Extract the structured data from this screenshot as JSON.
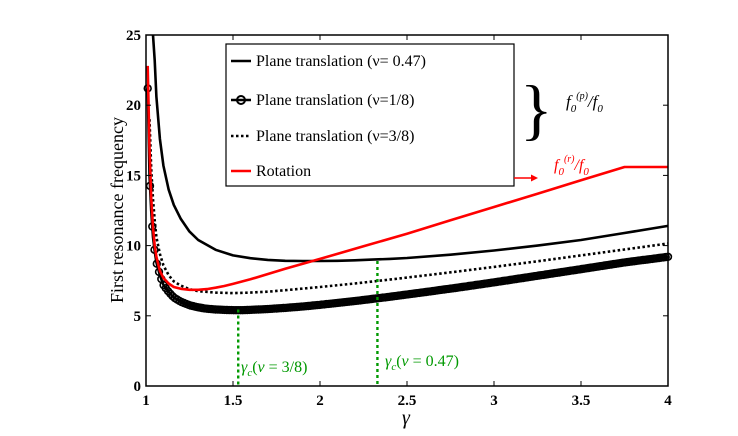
{
  "chart_data": {
    "type": "line",
    "xlabel": "γ",
    "ylabel": "First resonance frequency",
    "xlim": [
      1,
      4
    ],
    "ylim": [
      0,
      25
    ],
    "xticks": [
      "1",
      "1.5",
      "2",
      "2.5",
      "3",
      "3.5",
      "4"
    ],
    "yticks": [
      "0",
      "5",
      "10",
      "15",
      "20",
      "25"
    ],
    "grid": false,
    "legend_position": "top-center",
    "series": [
      {
        "name": "Plane translation (ν= 0.47)",
        "style": "solid",
        "color": "#000000",
        "x": [
          1.04,
          1.05,
          1.06,
          1.08,
          1.1,
          1.13,
          1.16,
          1.2,
          1.25,
          1.3,
          1.4,
          1.5,
          1.6,
          1.7,
          1.8,
          1.9,
          2.0,
          2.1,
          2.2,
          2.3,
          2.4,
          2.5,
          2.75,
          3.0,
          3.25,
          3.5,
          3.75,
          4.0
        ],
        "y": [
          25.0,
          23.2,
          20.6,
          17.6,
          15.7,
          14.0,
          12.9,
          11.9,
          11.0,
          10.4,
          9.7,
          9.3,
          9.1,
          8.98,
          8.92,
          8.9,
          8.9,
          8.92,
          8.95,
          9.0,
          9.05,
          9.12,
          9.35,
          9.65,
          10.0,
          10.4,
          10.9,
          11.4
        ]
      },
      {
        "name": "Plane translation (ν=1/8)",
        "style": "solid-circles",
        "color": "#000000",
        "x": [
          1.01,
          1.02,
          1.03,
          1.04,
          1.05,
          1.06,
          1.08,
          1.1,
          1.13,
          1.16,
          1.2,
          1.25,
          1.3,
          1.35,
          1.4,
          1.45,
          1.5,
          1.55,
          1.6,
          1.7,
          1.8,
          1.9,
          2.0,
          2.2,
          2.4,
          2.6,
          2.8,
          3.0,
          3.25,
          3.5,
          3.75,
          4.0
        ],
        "y": [
          21.2,
          15.0,
          12.5,
          10.6,
          9.6,
          8.8,
          7.9,
          7.2,
          6.7,
          6.3,
          6.0,
          5.75,
          5.6,
          5.5,
          5.45,
          5.42,
          5.4,
          5.4,
          5.42,
          5.48,
          5.56,
          5.66,
          5.78,
          6.05,
          6.35,
          6.68,
          7.02,
          7.38,
          7.85,
          8.32,
          8.8,
          9.2
        ]
      },
      {
        "name": "Plane translation (ν=3/8)",
        "style": "dotted",
        "color": "#000000",
        "x": [
          1.02,
          1.03,
          1.04,
          1.05,
          1.06,
          1.08,
          1.1,
          1.13,
          1.16,
          1.2,
          1.25,
          1.3,
          1.4,
          1.5,
          1.6,
          1.7,
          1.8,
          2.0,
          2.2,
          2.4,
          2.6,
          2.8,
          3.0,
          3.25,
          3.5,
          3.75,
          4.0
        ],
        "y": [
          19.0,
          15.5,
          13.3,
          11.8,
          10.6,
          9.4,
          8.6,
          7.9,
          7.45,
          7.15,
          6.9,
          6.75,
          6.65,
          6.62,
          6.65,
          6.72,
          6.82,
          7.05,
          7.3,
          7.58,
          7.87,
          8.17,
          8.48,
          8.88,
          9.3,
          9.72,
          10.15
        ]
      },
      {
        "name": "Rotation",
        "style": "solid",
        "color": "#ff0000",
        "x": [
          1.01,
          1.02,
          1.03,
          1.04,
          1.05,
          1.06,
          1.08,
          1.1,
          1.13,
          1.16,
          1.2,
          1.25,
          1.3,
          1.35,
          1.4,
          1.45,
          1.5,
          1.6,
          1.8,
          2.0,
          2.25,
          2.5,
          2.75,
          3.0,
          3.25,
          3.5,
          3.75,
          4.0
        ],
        "y": [
          22.8,
          17.0,
          13.4,
          11.3,
          10.0,
          9.2,
          8.2,
          7.7,
          7.3,
          7.05,
          6.92,
          6.85,
          6.85,
          6.9,
          7.0,
          7.12,
          7.27,
          7.6,
          8.35,
          9.05,
          9.95,
          10.85,
          11.8,
          12.75,
          13.7,
          14.65,
          15.6,
          15.6
        ]
      }
    ],
    "annotations": {
      "brace_label": "f0(p)/f0",
      "rotation_label": "f0(r)/f0",
      "critical_lines": [
        {
          "x": 1.53,
          "label": "γc(ν = 3/8)",
          "color": "#009900"
        },
        {
          "x": 2.33,
          "label": "γc(ν = 0.47)",
          "color": "#009900"
        }
      ]
    }
  }
}
